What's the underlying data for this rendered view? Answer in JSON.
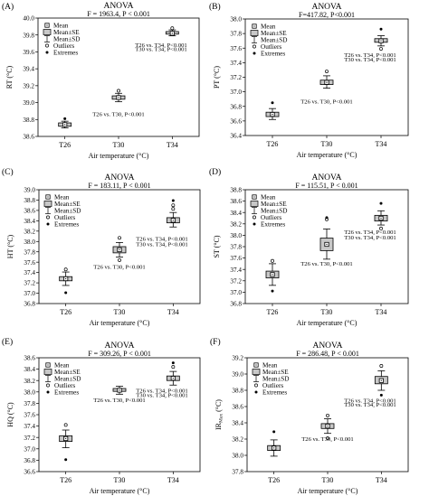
{
  "chart_data": [
    {
      "type": "boxplot",
      "panel_label": "(A)",
      "title": "ANOVA",
      "subtitle": "F = 1963.4,  P < 0.001",
      "xlabel": "Air temperature (°C)",
      "ylabel": "RT (°C)",
      "ylim": [
        38.6,
        40.0
      ],
      "yticks": [
        "38.6",
        "38.8",
        "39.0",
        "39.2",
        "39.4",
        "39.6",
        "39.8",
        "40.0"
      ],
      "categories": [
        "T26",
        "T30",
        "T34"
      ],
      "groups": [
        {
          "category": "T26",
          "mean": 38.74,
          "se": [
            38.72,
            38.76
          ],
          "sd": [
            38.7,
            38.78
          ],
          "outliers": [],
          "extremes": [
            38.81
          ]
        },
        {
          "category": "T30",
          "mean": 39.06,
          "se": [
            39.04,
            39.08
          ],
          "sd": [
            39.01,
            39.11
          ],
          "outliers": [
            39.14
          ],
          "extremes": []
        },
        {
          "category": "T34",
          "mean": 39.82,
          "se": [
            39.81,
            39.84
          ],
          "sd": [
            39.79,
            39.86
          ],
          "outliers": [
            39.88
          ],
          "extremes": []
        }
      ],
      "legend": [
        "Mean",
        "Mean±SE",
        "Mean±SD",
        "Outliers",
        "Extremes"
      ],
      "annotations": [
        {
          "text": "T26 vs. T30, P<0.001",
          "x": "T30",
          "y": 38.84
        },
        {
          "text": "T26 vs. T34, P<0.001",
          "x": "T34",
          "y": 39.66
        },
        {
          "text": "T30 vs. T34, P<0.001",
          "x": "T34",
          "y": 39.61
        }
      ]
    },
    {
      "type": "boxplot",
      "panel_label": "(B)",
      "title": "ANOVA",
      "subtitle": "F=417.82, P<0.001",
      "xlabel": "Air temperature (°C)",
      "ylabel": "PT (°C)",
      "ylim": [
        36.4,
        38.0
      ],
      "yticks": [
        "36.4",
        "36.6",
        "36.8",
        "37.0",
        "37.2",
        "37.4",
        "37.6",
        "37.8",
        "38.0"
      ],
      "categories": [
        "T26",
        "T30",
        "T34"
      ],
      "groups": [
        {
          "category": "T26",
          "mean": 36.69,
          "se": [
            36.66,
            36.72
          ],
          "sd": [
            36.62,
            36.77
          ],
          "outliers": [],
          "extremes": [
            36.85
          ]
        },
        {
          "category": "T30",
          "mean": 37.13,
          "se": [
            37.1,
            37.16
          ],
          "sd": [
            37.05,
            37.22
          ],
          "outliers": [
            37.28
          ],
          "extremes": []
        },
        {
          "category": "T34",
          "mean": 37.7,
          "se": [
            37.68,
            37.73
          ],
          "sd": [
            37.63,
            37.77
          ],
          "outliers": [
            37.59
          ],
          "extremes": [
            37.86
          ]
        }
      ],
      "legend": [
        "Mean",
        "Mean±SE",
        "Mean±SD",
        "Outliers",
        "Extremes"
      ],
      "annotations": [
        {
          "text": "T26 vs. T30, P<0.001",
          "x": "T30",
          "y": 36.84
        },
        {
          "text": "T26 vs. T34, P<0.001",
          "x": "T34",
          "y": 37.48
        },
        {
          "text": "T30 vs. T34, P<0.001",
          "x": "T34",
          "y": 37.42
        }
      ]
    },
    {
      "type": "boxplot",
      "panel_label": "(C)",
      "title": "ANOVA",
      "subtitle": "F = 183.11,  P < 0.001",
      "xlabel": "Air temperature (°C)",
      "ylabel": "HT (°C)",
      "ylim": [
        36.8,
        39.0
      ],
      "yticks": [
        "36.8",
        "37.0",
        "37.2",
        "37.4",
        "37.6",
        "37.8",
        "38.0",
        "38.2",
        "38.4",
        "38.6",
        "38.8",
        "39.0"
      ],
      "categories": [
        "T26",
        "T30",
        "T34"
      ],
      "groups": [
        {
          "category": "T26",
          "mean": 37.28,
          "se": [
            37.24,
            37.32
          ],
          "sd": [
            37.15,
            37.41
          ],
          "outliers": [
            37.46
          ],
          "extremes": [
            37.01
          ]
        },
        {
          "category": "T30",
          "mean": 37.84,
          "se": [
            37.78,
            37.9
          ],
          "sd": [
            37.7,
            37.98
          ],
          "outliers": [
            38.07,
            37.64
          ],
          "extremes": []
        },
        {
          "category": "T34",
          "mean": 38.41,
          "se": [
            38.36,
            38.46
          ],
          "sd": [
            38.28,
            38.56
          ],
          "outliers": [
            38.7,
            38.63
          ],
          "extremes": [
            38.79
          ]
        }
      ],
      "legend": [
        "Mean",
        "Mean±SE",
        "Mean±SD",
        "Outliers",
        "Extremes"
      ],
      "annotations": [
        {
          "text": "T26 vs. T30, P<0.001",
          "x": "T30",
          "y": 37.47
        },
        {
          "text": "T26 vs. T34, P<0.001",
          "x": "T34",
          "y": 38.01
        },
        {
          "text": "T30 vs. T34, P<0.001",
          "x": "T34",
          "y": 37.91
        }
      ]
    },
    {
      "type": "boxplot",
      "panel_label": "(D)",
      "title": "ANOVA",
      "subtitle": "F = 115.51,  P < 0.001",
      "xlabel": "Air temperature (°C)",
      "ylabel": "ST (°C)",
      "ylim": [
        36.8,
        38.8
      ],
      "yticks": [
        "36.8",
        "37.0",
        "37.2",
        "37.4",
        "37.6",
        "37.8",
        "38.0",
        "38.2",
        "38.4",
        "38.6",
        "38.8"
      ],
      "categories": [
        "T26",
        "T30",
        "T34"
      ],
      "groups": [
        {
          "category": "T26",
          "mean": 37.31,
          "se": [
            37.25,
            37.37
          ],
          "sd": [
            37.12,
            37.5
          ],
          "outliers": [
            37.55
          ],
          "extremes": [
            37.02
          ]
        },
        {
          "category": "T30",
          "mean": 37.84,
          "se": [
            37.73,
            37.95
          ],
          "sd": [
            37.58,
            38.11
          ],
          "outliers": [
            38.28
          ],
          "extremes": [
            38.31
          ]
        },
        {
          "category": "T34",
          "mean": 38.3,
          "se": [
            38.25,
            38.35
          ],
          "sd": [
            38.18,
            38.43
          ],
          "outliers": [
            38.12
          ],
          "extremes": [
            38.56
          ]
        }
      ],
      "legend": [
        "Mean",
        "Mean±SE",
        "Mean±SD",
        "Outliers",
        "Extremes"
      ],
      "annotations": [
        {
          "text": "T26 vs. T30, P<0.001",
          "x": "T30",
          "y": 37.47
        },
        {
          "text": "T26 vs. T34, P<0.001",
          "x": "T34",
          "y": 38.02
        },
        {
          "text": "T30 vs. T34, P<0.001",
          "x": "T34",
          "y": 37.93
        }
      ]
    },
    {
      "type": "boxplot",
      "panel_label": "(E)",
      "title": "ANOVA",
      "subtitle": "F = 309.26,  P < 0.001",
      "xlabel": "Air temperature (°C)",
      "ylabel": "HQ (°C)",
      "ylim": [
        36.6,
        38.6
      ],
      "yticks": [
        "36.6",
        "36.8",
        "37.0",
        "37.2",
        "37.4",
        "37.6",
        "37.8",
        "38.0",
        "38.2",
        "38.4",
        "38.6"
      ],
      "categories": [
        "T26",
        "T30",
        "T34"
      ],
      "groups": [
        {
          "category": "T26",
          "mean": 37.18,
          "se": [
            37.13,
            37.23
          ],
          "sd": [
            37.02,
            37.33
          ],
          "outliers": [
            37.42
          ],
          "extremes": [
            36.81
          ]
        },
        {
          "category": "T30",
          "mean": 38.03,
          "se": [
            38.01,
            38.06
          ],
          "sd": [
            37.96,
            38.1
          ],
          "outliers": [],
          "extremes": []
        },
        {
          "category": "T34",
          "mean": 38.24,
          "se": [
            38.2,
            38.28
          ],
          "sd": [
            38.12,
            38.36
          ],
          "outliers": [
            38.44
          ],
          "extremes": [
            38.51
          ]
        }
      ],
      "legend": [
        "Mean",
        "Mean±SE",
        "Mean±SD",
        "Outliers",
        "Extremes"
      ],
      "annotations": [
        {
          "text": "T26 vs. T30, P<0.001",
          "x": "T30",
          "y": 37.82
        },
        {
          "text": "T26 vs. T34, P<0.001",
          "x": "T34",
          "y": 37.99
        },
        {
          "text": "T30 vs. T34, P<0.001",
          "x": "T34",
          "y": 37.91
        }
      ]
    },
    {
      "type": "boxplot",
      "panel_label": "(F)",
      "title": "ANOVA",
      "subtitle": "F = 286.48,  P < 0.001",
      "xlabel": "Air temperature (°C)",
      "ylabel": "IR",
      "ylabel_sub": "Max",
      "ylabel_unit": " (°C)",
      "ylim": [
        37.8,
        39.2
      ],
      "yticks": [
        "37.8",
        "38.0",
        "38.2",
        "38.4",
        "38.6",
        "38.8",
        "39.0",
        "39.2"
      ],
      "categories": [
        "T26",
        "T30",
        "T34"
      ],
      "groups": [
        {
          "category": "T26",
          "mean": 38.09,
          "se": [
            38.06,
            38.12
          ],
          "sd": [
            37.99,
            38.19
          ],
          "outliers": [],
          "extremes": [
            38.29
          ]
        },
        {
          "category": "T30",
          "mean": 38.36,
          "se": [
            38.33,
            38.39
          ],
          "sd": [
            38.27,
            38.45
          ],
          "outliers": [
            38.21,
            38.49
          ],
          "extremes": []
        },
        {
          "category": "T34",
          "mean": 38.92,
          "se": [
            38.88,
            38.97
          ],
          "sd": [
            38.8,
            39.04
          ],
          "outliers": [
            39.1
          ],
          "extremes": [
            38.74
          ]
        }
      ],
      "legend": [
        "Mean",
        "Mean±SE",
        "Mean±SD",
        "Outliers",
        "Extremes"
      ],
      "annotations": [
        {
          "text": "T26 vs. T30, P<0.001",
          "x": "T30",
          "y": 38.18
        },
        {
          "text": "T26 vs. T34, P<0.001",
          "x": "T34",
          "y": 38.65
        },
        {
          "text": "T30 vs. T34, P<0.001",
          "x": "T34",
          "y": 38.6
        }
      ]
    }
  ]
}
